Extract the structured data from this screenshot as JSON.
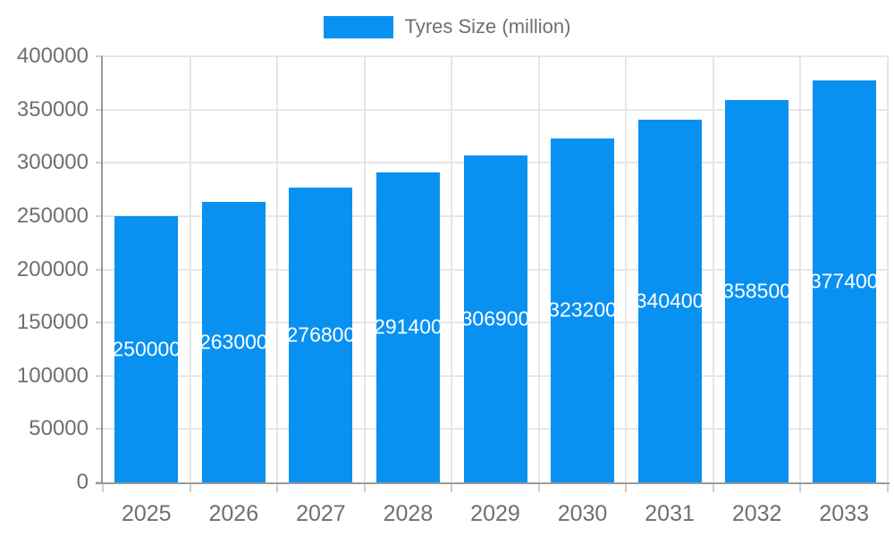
{
  "legend": {
    "items": [
      {
        "label": "Tyres Size (million)",
        "color": "#0991F2"
      }
    ]
  },
  "chart_data": {
    "type": "bar",
    "title": "",
    "xlabel": "",
    "ylabel": "",
    "categories": [
      "2025",
      "2026",
      "2027",
      "2028",
      "2029",
      "2030",
      "2031",
      "2032",
      "2033"
    ],
    "series": [
      {
        "name": "Tyres Size (million)",
        "color": "#0991F2",
        "values": [
          250000,
          263000,
          276800,
          291400,
          306900,
          323200,
          340400,
          358500,
          377400
        ]
      }
    ],
    "bar_labels_visible": true,
    "bar_label_color": "#FFFFFF",
    "ylim": [
      0,
      400000
    ],
    "yticks": [
      0,
      50000,
      100000,
      150000,
      200000,
      250000,
      300000,
      350000,
      400000
    ],
    "grid": true,
    "legend_position": "top"
  },
  "colors": {
    "background": "#FFFFFF",
    "axis_line": "#9A9A9A",
    "tick": "#CFCFCF",
    "gridline": "#E6E6E6",
    "axis_text": "#6F6F6F",
    "legend_text": "#6F6F6F"
  }
}
